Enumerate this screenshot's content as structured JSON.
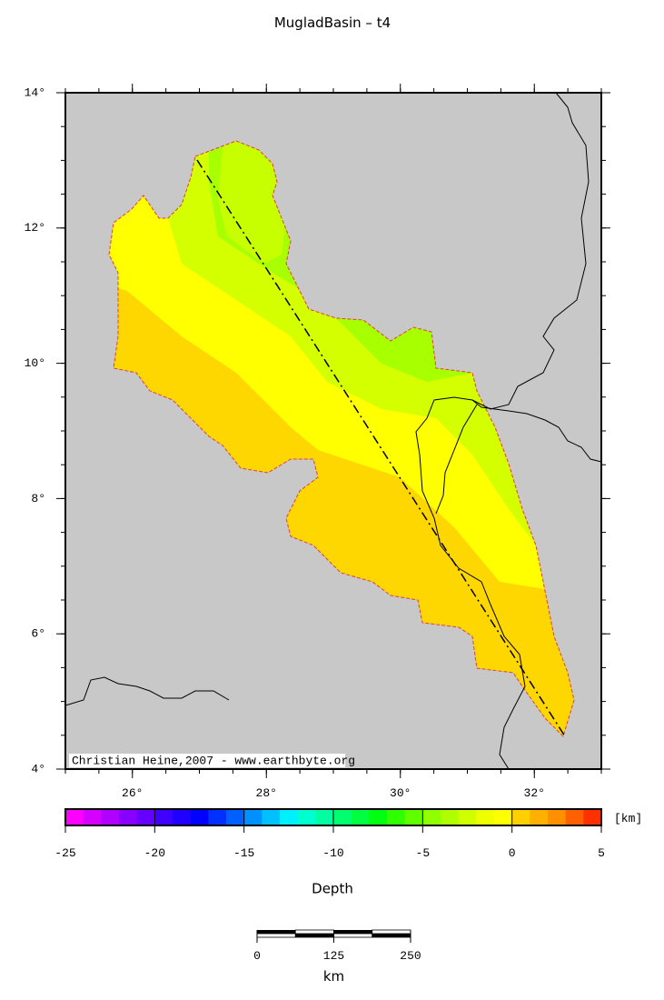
{
  "title": "MugladBasin – t4",
  "map": {
    "xlim": [
      25,
      33
    ],
    "ylim": [
      4,
      14
    ],
    "xticks": [
      {
        "value": 26,
        "label": "26°"
      },
      {
        "value": 28,
        "label": "28°"
      },
      {
        "value": 30,
        "label": "30°"
      },
      {
        "value": 32,
        "label": "32°"
      }
    ],
    "yticks": [
      {
        "value": 4,
        "label": "4°"
      },
      {
        "value": 6,
        "label": "6°"
      },
      {
        "value": 8,
        "label": "8°"
      },
      {
        "value": 10,
        "label": "10°"
      },
      {
        "value": 12,
        "label": "12°"
      },
      {
        "value": 14,
        "label": "14°"
      }
    ],
    "credit": "Christian Heine,2007 - www.earthbyte.org"
  },
  "colorbar": {
    "lim": [
      -25,
      5
    ],
    "ticks": [
      -25,
      -20,
      -15,
      -10,
      -5,
      0,
      5
    ],
    "unit": "[km]",
    "label": "Depth",
    "colors": [
      "#ff00ff",
      "#d500ff",
      "#b000ff",
      "#8a00ff",
      "#6600ff",
      "#4000ff",
      "#2000ff",
      "#0000ff",
      "#0030ff",
      "#0060ff",
      "#0090ff",
      "#00c0ff",
      "#00f0ff",
      "#00ffd0",
      "#00ffa0",
      "#00ff70",
      "#00ff40",
      "#00ff10",
      "#30ff00",
      "#60ff00",
      "#90ff00",
      "#b0ff00",
      "#d0ff00",
      "#f0ff00",
      "#ffff00",
      "#ffd000",
      "#ffb000",
      "#ff9000",
      "#ff6000",
      "#ff3000"
    ]
  },
  "scalebar": {
    "lim": [
      0,
      250
    ],
    "ticks": [
      0,
      125,
      250
    ],
    "unit": "km"
  }
}
